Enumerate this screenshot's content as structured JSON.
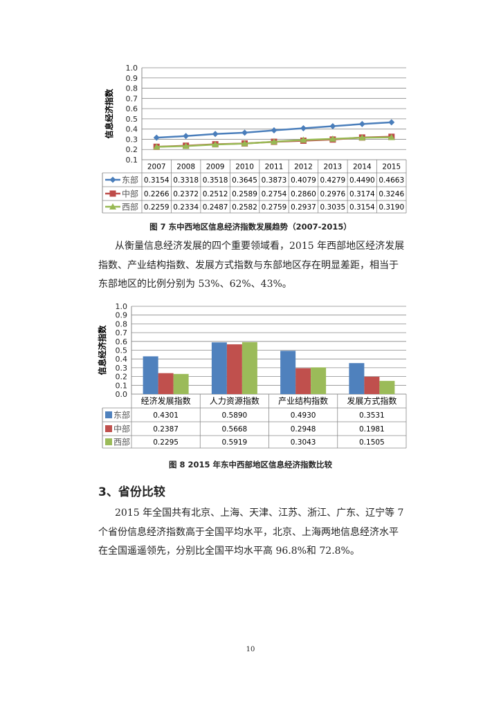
{
  "chart_data": [
    {
      "type": "line",
      "title": "图 7   东中西地区信息经济指数发展趋势（2007-2015）",
      "ylabel": "信息经济指数",
      "ylim": [
        0.1,
        1.0
      ],
      "yticks": [
        "0.1",
        "0.2",
        "0.3",
        "0.4",
        "0.5",
        "0.6",
        "0.7",
        "0.8",
        "0.9",
        "1.0"
      ],
      "grid": true,
      "legend": "data-table",
      "categories": [
        "2007",
        "2008",
        "2009",
        "2010",
        "2011",
        "2012",
        "2013",
        "2014",
        "2015"
      ],
      "series": [
        {
          "name": "东部",
          "marker": "diamond",
          "color": "#4a7ebb",
          "values": [
            0.3154,
            0.3318,
            0.3518,
            0.3645,
            0.3873,
            0.4079,
            0.4279,
            0.449,
            0.4663
          ]
        },
        {
          "name": "中部",
          "marker": "square",
          "color": "#be4b48",
          "values": [
            0.2266,
            0.2372,
            0.2512,
            0.2589,
            0.2754,
            0.286,
            0.2976,
            0.3174,
            0.3246
          ]
        },
        {
          "name": "西部",
          "marker": "triangle",
          "color": "#98b954",
          "values": [
            0.2259,
            0.2334,
            0.2487,
            0.2582,
            0.2759,
            0.2937,
            0.3035,
            0.3154,
            0.319
          ]
        }
      ],
      "value_labels": [
        [
          "0.3154",
          "0.3318",
          "0.3518",
          "0.3645",
          "0.3873",
          "0.4079",
          "0.4279",
          "0.4490",
          "0.4663"
        ],
        [
          "0.2266",
          "0.2372",
          "0.2512",
          "0.2589",
          "0.2754",
          "0.2860",
          "0.2976",
          "0.3174",
          "0.3246"
        ],
        [
          "0.2259",
          "0.2334",
          "0.2487",
          "0.2582",
          "0.2759",
          "0.2937",
          "0.3035",
          "0.3154",
          "0.3190"
        ]
      ]
    },
    {
      "type": "bar",
      "title": "图 8   2015 年东中西部地区信息经济指数比较",
      "ylabel": "信息经济指数",
      "ylim": [
        0.0,
        1.0
      ],
      "yticks": [
        "0.0",
        "0.1",
        "0.2",
        "0.3",
        "0.4",
        "0.5",
        "0.6",
        "0.7",
        "0.8",
        "0.9",
        "1.0"
      ],
      "grid": true,
      "legend": "data-table",
      "categories": [
        "经济发展指数",
        "人力资源指数",
        "产业结构指数",
        "发展方式指数"
      ],
      "series": [
        {
          "name": "东部",
          "color": "#4f81bd",
          "values": [
            0.4301,
            0.589,
            0.493,
            0.3531
          ]
        },
        {
          "name": "中部",
          "color": "#c0504d",
          "values": [
            0.2387,
            0.5668,
            0.2948,
            0.1981
          ]
        },
        {
          "name": "西部",
          "color": "#9bbb59",
          "values": [
            0.2295,
            0.5919,
            0.3043,
            0.1505
          ]
        }
      ],
      "value_labels": [
        [
          "0.4301",
          "0.5890",
          "0.4930",
          "0.3531"
        ],
        [
          "0.2387",
          "0.5668",
          "0.2948",
          "0.1981"
        ],
        [
          "0.2295",
          "0.5919",
          "0.3043",
          "0.1505"
        ]
      ]
    }
  ],
  "document": {
    "caption7": "图 7   东中西地区信息经济指数发展趋势（2007-2015）",
    "paragraph1": "从衡量信息经济发展的四个重要领域看，2015 年西部地区经济发展指数、产业结构指数、发展方式指数与东部地区存在明显差距，相当于东部地区的比例分别为 53%、62%、43%。",
    "caption8": "图 8   2015 年东中西部地区信息经济指数比较",
    "section_heading": "3、省份比较",
    "paragraph2": "2015 年全国共有北京、上海、天津、江苏、浙江、广东、辽宁等 7 个省份信息经济指数高于全国平均水平，北京、上海两地信息经济水平在全国遥遥领先，分别比全国平均水平高 96.8%和 72.8%。",
    "page_number": "10"
  }
}
